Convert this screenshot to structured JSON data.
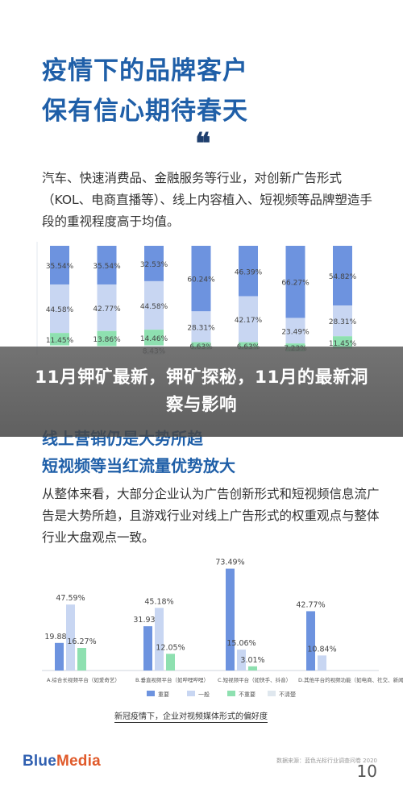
{
  "page": {
    "heading_line1": "疫情下的品牌客户",
    "heading_line2": "保有信心期待春天",
    "quote_mark": "❝",
    "paragraph1": "汽车、快速消费品、金融服务等行业，对创新广告形式（KOL、电商直播等）、线上内容植入、短视频等品牌塑造手段的重视程度高于均值。",
    "subheading1": "线上营销仍是大势所趋",
    "subheading2": "短视频等当红流量优势放大",
    "paragraph2": "从整体来看，大部分企业认为广告创新形式和短视频信息流广告是大势所趋，且游戏行业对线上广告形式的权重观点与整体行业大盘观点一致。",
    "caption": "新冠疫情下，企业对视频媒体形式的偏好度",
    "brand_part1": "Blue",
    "brand_part2": "Media",
    "source_note": "数据来源：蓝色光标行业调查问卷 2020",
    "page_number": "10"
  },
  "banner": {
    "title": "11月钾矿最新，钾矿探秘，11月的最新洞察与影响"
  },
  "chart_data": [
    {
      "type": "bar",
      "stacked": true,
      "series": [
        {
          "name": "",
          "color": "#6d93df",
          "values": [
            35.54,
            35.54,
            32.53,
            60.24,
            46.39,
            66.27,
            54.82
          ]
        },
        {
          "name": "",
          "color": "#c8d6f2",
          "values": [
            44.58,
            42.77,
            44.58,
            28.31,
            42.17,
            23.49,
            28.31
          ]
        },
        {
          "name": "",
          "color": "#8ee0b0",
          "values": [
            11.45,
            13.86,
            14.46,
            6.63,
            6.63,
            7.23,
            11.45
          ]
        },
        {
          "name": "",
          "color": "#e6ebf0",
          "values": [
            null,
            null,
            8.43,
            null,
            null,
            null,
            null
          ]
        }
      ]
    },
    {
      "type": "bar",
      "categories": [
        "A.综合长视频平台（如爱奇艺）",
        "B.垂直视频平台（如哔哩哔哩）",
        "C.短视频平台（如快手、抖音）",
        "D.其他平台的视频功能（如电商、社交、新闻等）"
      ],
      "series": [
        {
          "name": "重要",
          "color": "#6d93df",
          "values": [
            19.88,
            31.93,
            73.49,
            42.77
          ]
        },
        {
          "name": "一般",
          "color": "#c8d6f2",
          "values": [
            47.59,
            45.18,
            15.06,
            10.84
          ]
        },
        {
          "name": "不重要",
          "color": "#8ee0b0",
          "values": [
            16.27,
            12.05,
            3.01,
            null
          ]
        },
        {
          "name": "不清楚",
          "color": "#dfe7ee",
          "values": [
            null,
            null,
            null,
            null
          ]
        }
      ],
      "legend_position": "bottom"
    }
  ],
  "colors": {
    "heading": "#1f5fa8",
    "bar_dark": "#6d93df",
    "bar_light": "#c8d6f2",
    "bar_green": "#8ee0b0"
  }
}
